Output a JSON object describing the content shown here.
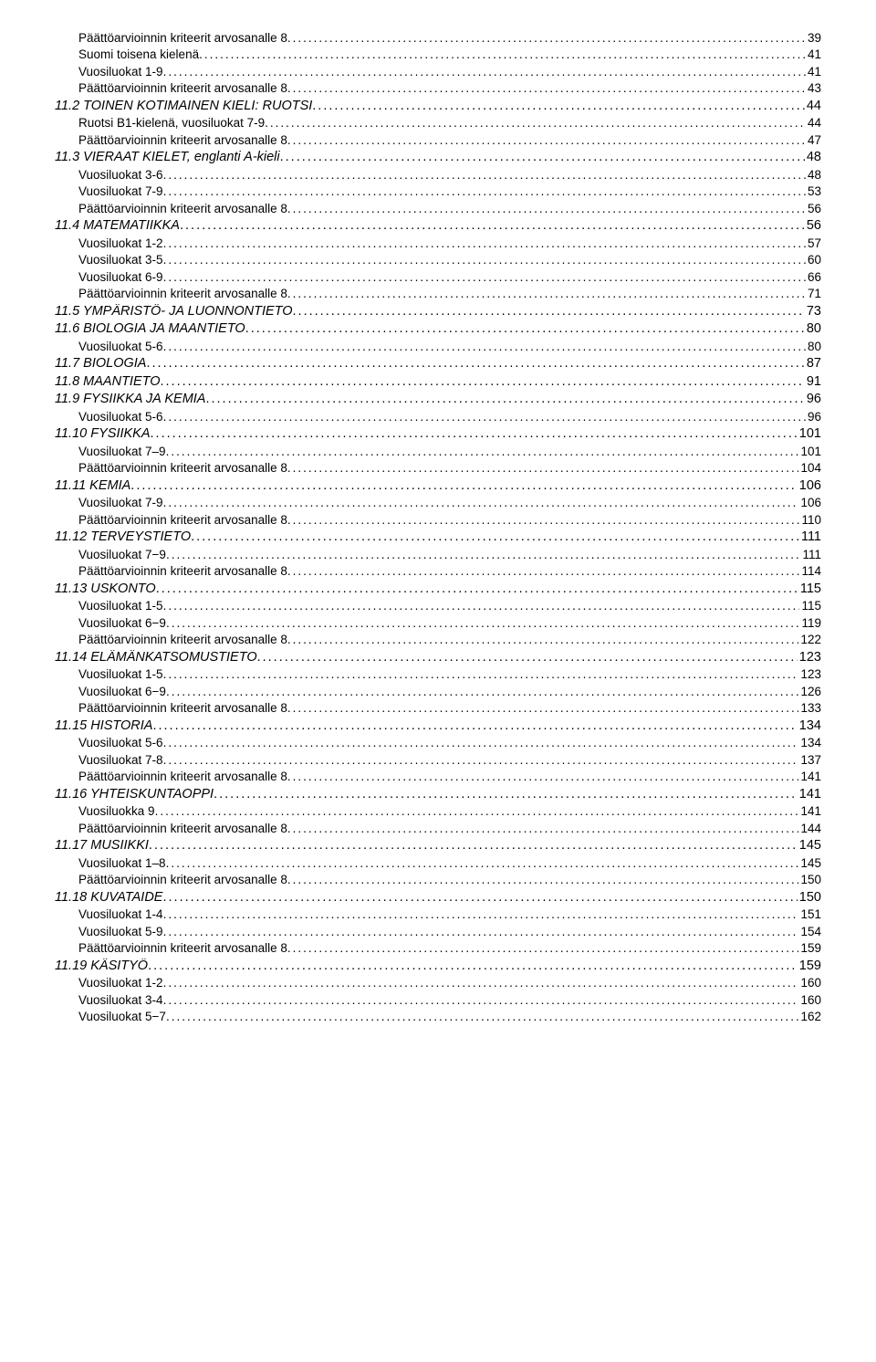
{
  "toc": [
    {
      "level": 2,
      "label": "Päättöarvioinnin kriteerit arvosanalle 8",
      "page": "39"
    },
    {
      "level": 2,
      "label": "Suomi toisena kielenä",
      "page": "41"
    },
    {
      "level": 2,
      "label": "Vuosiluokat 1-9",
      "page": "41"
    },
    {
      "level": 2,
      "label": "Päättöarvioinnin kriteerit arvosanalle 8",
      "page": "43"
    },
    {
      "level": 1,
      "label": "11.2 TOINEN KOTIMAINEN KIELI: RUOTSI",
      "page": "44"
    },
    {
      "level": 2,
      "label": "Ruotsi B1-kielenä, vuosiluokat 7-9",
      "page": "44"
    },
    {
      "level": 2,
      "label": "Päättöarvioinnin kriteerit arvosanalle 8",
      "page": "47"
    },
    {
      "level": 1,
      "label": "11.3 VIERAAT KIELET, englanti A-kieli",
      "page": "48"
    },
    {
      "level": 2,
      "label": "Vuosiluokat 3-6",
      "page": "48"
    },
    {
      "level": 2,
      "label": "Vuosiluokat 7-9",
      "page": "53"
    },
    {
      "level": 2,
      "label": "Päättöarvioinnin kriteerit arvosanalle 8",
      "page": "56"
    },
    {
      "level": 1,
      "label": "11.4 MATEMATIIKKA",
      "page": "56"
    },
    {
      "level": 2,
      "label": "Vuosiluokat 1-2",
      "page": "57"
    },
    {
      "level": 2,
      "label": "Vuosiluokat 3-5",
      "page": "60"
    },
    {
      "level": 2,
      "label": "Vuosiluokat 6-9",
      "page": "66"
    },
    {
      "level": 2,
      "label": "Päättöarvioinnin kriteerit arvosanalle 8",
      "page": "71"
    },
    {
      "level": 1,
      "label": "11.5 YMPÄRISTÖ- JA LUONNONTIETO",
      "page": "73"
    },
    {
      "level": 1,
      "label": "11.6 BIOLOGIA JA MAANTIETO",
      "page": "80"
    },
    {
      "level": 2,
      "label": "Vuosiluokat  5-6",
      "page": "80"
    },
    {
      "level": 1,
      "label": "11.7 BIOLOGIA",
      "page": "87"
    },
    {
      "level": 1,
      "label": "11.8 MAANTIETO",
      "page": "91"
    },
    {
      "level": 1,
      "label": "11.9 FYSIIKKA JA KEMIA",
      "page": "96"
    },
    {
      "level": 2,
      "label": "Vuosiluokat 5-6",
      "page": "96"
    },
    {
      "level": 1,
      "label": "11.10 FYSIIKKA",
      "page": "101"
    },
    {
      "level": 2,
      "label": "Vuosiluokat 7–9",
      "page": "101"
    },
    {
      "level": 2,
      "label": "Päättöarvioinnin kriteerit arvosanalle 8",
      "page": "104"
    },
    {
      "level": 1,
      "label": "11.11 KEMIA",
      "page": "106"
    },
    {
      "level": 2,
      "label": "Vuosiluokat 7-9",
      "page": "106"
    },
    {
      "level": 2,
      "label": "Päättöarvioinnin kriteerit arvosanalle 8",
      "page": "110"
    },
    {
      "level": 1,
      "label": "11.12 TERVEYSTIETO",
      "page": "111"
    },
    {
      "level": 2,
      "label": "Vuosiluokat 7−9",
      "page": "111"
    },
    {
      "level": 2,
      "label": "Päättöarvioinnin kriteerit arvosanalle 8",
      "page": "114"
    },
    {
      "level": 1,
      "label": "11.13 USKONTO",
      "page": "115"
    },
    {
      "level": 2,
      "label": "Vuosiluokat 1-5",
      "page": "115"
    },
    {
      "level": 2,
      "label": "Vuosiluokat 6−9",
      "page": "119"
    },
    {
      "level": 2,
      "label": "Päättöarvioinnin kriteerit arvosanalle 8",
      "page": "122"
    },
    {
      "level": 1,
      "label": "11.14 ELÄMÄNKATSOMUSTIETO",
      "page": "123"
    },
    {
      "level": 2,
      "label": "Vuosiluokat 1-5",
      "page": "123"
    },
    {
      "level": 2,
      "label": "Vuosiluokat 6−9",
      "page": "126"
    },
    {
      "level": 2,
      "label": "Päättöarvioinnin kriteerit arvosanalle 8",
      "page": "133"
    },
    {
      "level": 1,
      "label": "11.15 HISTORIA",
      "page": "134"
    },
    {
      "level": 2,
      "label": "Vuosiluokat 5-6",
      "page": "134"
    },
    {
      "level": 2,
      "label": "Vuosiluokat 7-8",
      "page": "137"
    },
    {
      "level": 2,
      "label": "Päättöarvioinnin kriteerit arvosanalle 8",
      "page": "141"
    },
    {
      "level": 1,
      "label": "11.16 YHTEISKUNTAOPPI",
      "page": "141"
    },
    {
      "level": 2,
      "label": "Vuosiluokka 9",
      "page": "141"
    },
    {
      "level": 2,
      "label": "Päättöarvioinnin kriteerit arvosanalle 8",
      "page": "144"
    },
    {
      "level": 1,
      "label": "11.17 MUSIIKKI",
      "page": "145"
    },
    {
      "level": 2,
      "label": "Vuosiluokat 1–8",
      "page": "145"
    },
    {
      "level": 2,
      "label": "Päättöarvioinnin kriteerit arvosanalle 8",
      "page": "150"
    },
    {
      "level": 1,
      "label": "11.18 KUVATAIDE",
      "page": "150"
    },
    {
      "level": 2,
      "label": "Vuosiluokat 1-4",
      "page": "151"
    },
    {
      "level": 2,
      "label": "Vuosiluokat 5-9",
      "page": "154"
    },
    {
      "level": 2,
      "label": "Päättöarvioinnin kriteerit arvosanalle 8",
      "page": "159"
    },
    {
      "level": 1,
      "label": "11.19 KÄSITYÖ",
      "page": "159"
    },
    {
      "level": 2,
      "label": "Vuosiluokat 1-2",
      "page": "160"
    },
    {
      "level": 2,
      "label": "Vuosiluokat 3-4",
      "page": "160"
    },
    {
      "level": 2,
      "label": "Vuosiluokat 5−7",
      "page": "162"
    }
  ]
}
